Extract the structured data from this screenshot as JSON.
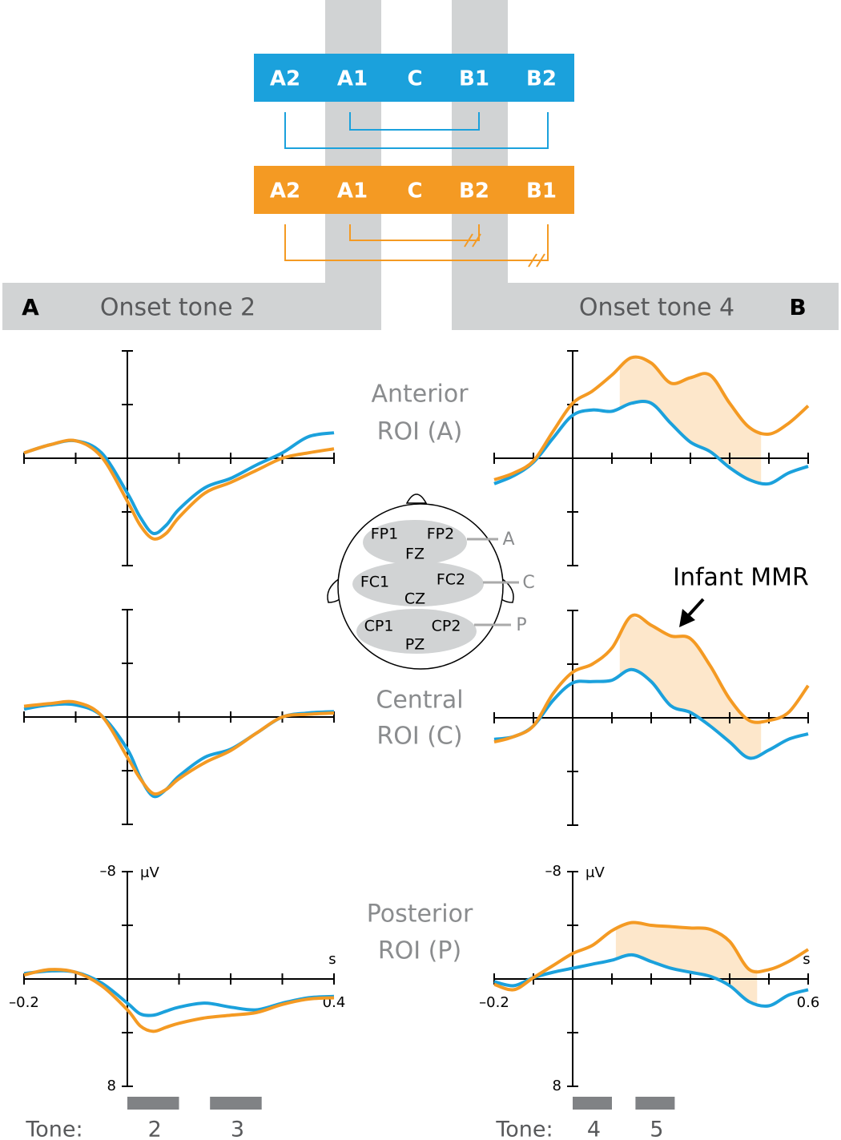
{
  "diagram": {
    "sequences": [
      {
        "color": "#1ba1dc",
        "labels": [
          "A2",
          "A1",
          "C",
          "B1",
          "B2"
        ]
      },
      {
        "color": "#f49a23",
        "labels": [
          "A2",
          "A1",
          "C",
          "B2",
          "B1"
        ]
      }
    ],
    "headers": [
      "A",
      "Onset tone 2",
      "Onset tone 4",
      "B"
    ],
    "roi_labels": [
      [
        "Anterior",
        "ROI (A)"
      ],
      [
        "Central",
        "ROI (C)"
      ],
      [
        "Posterior",
        "ROI (P)"
      ]
    ],
    "electrodes": [
      "FP1",
      "FP2",
      "FZ",
      "FC1",
      "FC2",
      "CZ",
      "CP1",
      "CP2",
      "PZ"
    ],
    "regions": [
      "A",
      "C",
      "P"
    ]
  },
  "chart_data": [
    {
      "type": "line",
      "x": [
        -0.2,
        -0.15,
        -0.1,
        -0.05,
        0,
        0.025,
        0.05,
        0.075,
        0.1,
        0.15,
        0.2,
        0.25,
        0.3,
        0.35,
        0.4
      ],
      "series": [
        {
          "color": "#1ba1dc",
          "values": [
            -0.4,
            -1.0,
            -1.3,
            -0.4,
            2.6,
            4.4,
            5.6,
            5.0,
            3.8,
            2.2,
            1.5,
            0.5,
            -0.4,
            -1.6,
            -1.9
          ]
        },
        {
          "color": "#f49a23",
          "values": [
            -0.4,
            -1.0,
            -1.3,
            -0.1,
            3.2,
            5.0,
            6.0,
            5.6,
            4.4,
            2.6,
            1.8,
            0.9,
            0,
            -0.4,
            -0.7
          ]
        }
      ],
      "xlim": [
        -0.2,
        0.4
      ],
      "ylim": [
        -8,
        8
      ],
      "y_inverted": true,
      "x_tick_marks": [
        -0.2,
        -0.1,
        0,
        0.1,
        0.2,
        0.3,
        0.4
      ],
      "y_tick_marks": [
        -8,
        -4,
        0,
        4,
        8
      ]
    },
    {
      "type": "line",
      "x": [
        -0.2,
        -0.15,
        -0.1,
        -0.05,
        0,
        0.025,
        0.05,
        0.075,
        0.1,
        0.15,
        0.2,
        0.25,
        0.3,
        0.35,
        0.4
      ],
      "series": [
        {
          "color": "#1ba1dc",
          "values": [
            -0.6,
            -0.9,
            -0.9,
            -0.1,
            2.4,
            4.5,
            5.9,
            5.4,
            4.4,
            3.0,
            2.4,
            1.2,
            0,
            -0.3,
            -0.4
          ]
        },
        {
          "color": "#f49a23",
          "values": [
            -0.8,
            -1.0,
            -1.1,
            -0.1,
            3.0,
            4.6,
            5.7,
            5.4,
            4.6,
            3.4,
            2.5,
            1.2,
            0,
            -0.2,
            -0.3
          ]
        }
      ],
      "xlim": [
        -0.2,
        0.4
      ],
      "ylim": [
        -8,
        8
      ],
      "y_inverted": true,
      "x_tick_marks": [
        -0.2,
        -0.1,
        0,
        0.1,
        0.2,
        0.3,
        0.4
      ],
      "y_tick_marks": [
        -8,
        -4,
        0,
        4,
        8
      ]
    },
    {
      "type": "line",
      "x": [
        -0.2,
        -0.15,
        -0.1,
        -0.05,
        0,
        0.025,
        0.05,
        0.075,
        0.1,
        0.15,
        0.2,
        0.25,
        0.3,
        0.35,
        0.4
      ],
      "series": [
        {
          "color": "#1ba1dc",
          "values": [
            -0.4,
            -0.6,
            -0.5,
            0.3,
            1.8,
            2.6,
            2.7,
            2.4,
            2.1,
            1.8,
            2.1,
            2.3,
            1.8,
            1.4,
            1.3
          ]
        },
        {
          "color": "#f49a23",
          "values": [
            -0.3,
            -0.7,
            -0.5,
            0.5,
            2.3,
            3.5,
            3.9,
            3.6,
            3.3,
            2.9,
            2.7,
            2.5,
            1.9,
            1.5,
            1.4
          ]
        }
      ],
      "xlim": [
        -0.2,
        0.4
      ],
      "ylim": [
        -8,
        8
      ],
      "y_inverted": true,
      "xticks": [
        {
          "value": -0.2,
          "label": "–0.2"
        },
        0.4
      ],
      "x_tick_marks": [
        -0.1,
        0,
        0.1,
        0.2,
        0.3
      ],
      "yticks": [
        {
          "value": -8,
          "label": "–8"
        },
        8
      ],
      "y_tick_marks": [
        -4,
        0,
        4
      ],
      "xlabel": "s",
      "ylabel": "μV",
      "tone_label": "Tone:",
      "tones": [
        {
          "label": "2",
          "start": 0,
          "end": 0.1
        },
        {
          "label": "3",
          "start": 0.16,
          "end": 0.26
        }
      ]
    },
    {
      "type": "line",
      "x": [
        -0.2,
        -0.15,
        -0.1,
        -0.05,
        0,
        0.05,
        0.1,
        0.15,
        0.2,
        0.25,
        0.3,
        0.35,
        0.4,
        0.45,
        0.5,
        0.55,
        0.6
      ],
      "series": [
        {
          "color": "#1ba1dc",
          "values": [
            1.9,
            1.3,
            0.3,
            -1.5,
            -3.2,
            -3.6,
            -3.5,
            -4.1,
            -4.1,
            -2.6,
            -1.2,
            -0.5,
            0.7,
            1.6,
            1.9,
            1.1,
            0.6
          ]
        },
        {
          "color": "#f49a23",
          "values": [
            1.6,
            1.1,
            0.2,
            -2.0,
            -4.1,
            -5.0,
            -6.2,
            -7.5,
            -7.1,
            -5.6,
            -6.0,
            -6.2,
            -4.1,
            -2.3,
            -1.8,
            -2.6,
            -3.9
          ]
        }
      ],
      "shade": {
        "from": 0.12,
        "to": 0.48,
        "color": "#fde3c2"
      },
      "xlim": [
        -0.2,
        0.6
      ],
      "ylim": [
        -8,
        8
      ],
      "y_inverted": true,
      "x_tick_marks": [
        -0.2,
        -0.1,
        0,
        0.1,
        0.2,
        0.3,
        0.4,
        0.5,
        0.6
      ],
      "y_tick_marks": [
        -8,
        -4,
        0,
        4,
        8
      ]
    },
    {
      "type": "line",
      "x": [
        -0.2,
        -0.15,
        -0.1,
        -0.05,
        0,
        0.05,
        0.1,
        0.15,
        0.2,
        0.25,
        0.3,
        0.35,
        0.4,
        0.45,
        0.5,
        0.55,
        0.6
      ],
      "series": [
        {
          "color": "#1ba1dc",
          "values": [
            1.6,
            1.4,
            0.6,
            -1.3,
            -2.6,
            -2.7,
            -2.8,
            -3.6,
            -2.7,
            -0.9,
            -0.4,
            0.6,
            1.8,
            3.0,
            2.4,
            1.6,
            1.2
          ]
        },
        {
          "color": "#f49a23",
          "values": [
            1.8,
            1.4,
            0.6,
            -1.8,
            -3.4,
            -4.0,
            -5.2,
            -7.6,
            -6.9,
            -6.1,
            -5.9,
            -3.9,
            -1.4,
            0.2,
            0.2,
            -0.4,
            -2.4
          ]
        }
      ],
      "shade": {
        "from": 0.12,
        "to": 0.48,
        "color": "#fde3c2"
      },
      "annotation": "Infant MMR",
      "xlim": [
        -0.2,
        0.6
      ],
      "ylim": [
        -8,
        8
      ],
      "y_inverted": true,
      "x_tick_marks": [
        -0.2,
        -0.1,
        0,
        0.1,
        0.2,
        0.3,
        0.4,
        0.5,
        0.6
      ],
      "y_tick_marks": [
        -8,
        -4,
        0,
        4,
        8
      ]
    },
    {
      "type": "line",
      "x": [
        -0.2,
        -0.15,
        -0.1,
        -0.05,
        0,
        0.05,
        0.1,
        0.15,
        0.2,
        0.25,
        0.3,
        0.35,
        0.4,
        0.45,
        0.5,
        0.55,
        0.6
      ],
      "series": [
        {
          "color": "#1ba1dc",
          "values": [
            0.2,
            0.5,
            -0.1,
            -0.5,
            -0.8,
            -1.1,
            -1.4,
            -1.8,
            -1.3,
            -0.8,
            -0.5,
            -0.2,
            0.5,
            1.7,
            2.0,
            1.2,
            0.8
          ]
        },
        {
          "color": "#f49a23",
          "values": [
            0.4,
            0.8,
            -0.1,
            -1.0,
            -1.9,
            -2.5,
            -3.6,
            -4.2,
            -4.0,
            -3.9,
            -3.8,
            -3.7,
            -2.8,
            -0.7,
            -0.7,
            -1.3,
            -2.2
          ]
        }
      ],
      "shade": {
        "from": 0.11,
        "to": 0.47,
        "color": "#fde3c2"
      },
      "xlim": [
        -0.2,
        0.6
      ],
      "ylim": [
        -8,
        8
      ],
      "y_inverted": true,
      "xticks": [
        {
          "value": -0.2,
          "label": "–0.2"
        },
        0.6
      ],
      "x_tick_marks": [
        -0.1,
        0,
        0.1,
        0.2,
        0.3,
        0.4,
        0.5
      ],
      "yticks": [
        {
          "value": -8,
          "label": "–8"
        },
        8
      ],
      "y_tick_marks": [
        -4,
        0,
        4
      ],
      "xlabel": "s",
      "ylabel": "μV",
      "tone_label": "Tone:",
      "tones": [
        {
          "label": "4",
          "start": 0,
          "end": 0.1
        },
        {
          "label": "5",
          "start": 0.16,
          "end": 0.26
        }
      ]
    }
  ]
}
